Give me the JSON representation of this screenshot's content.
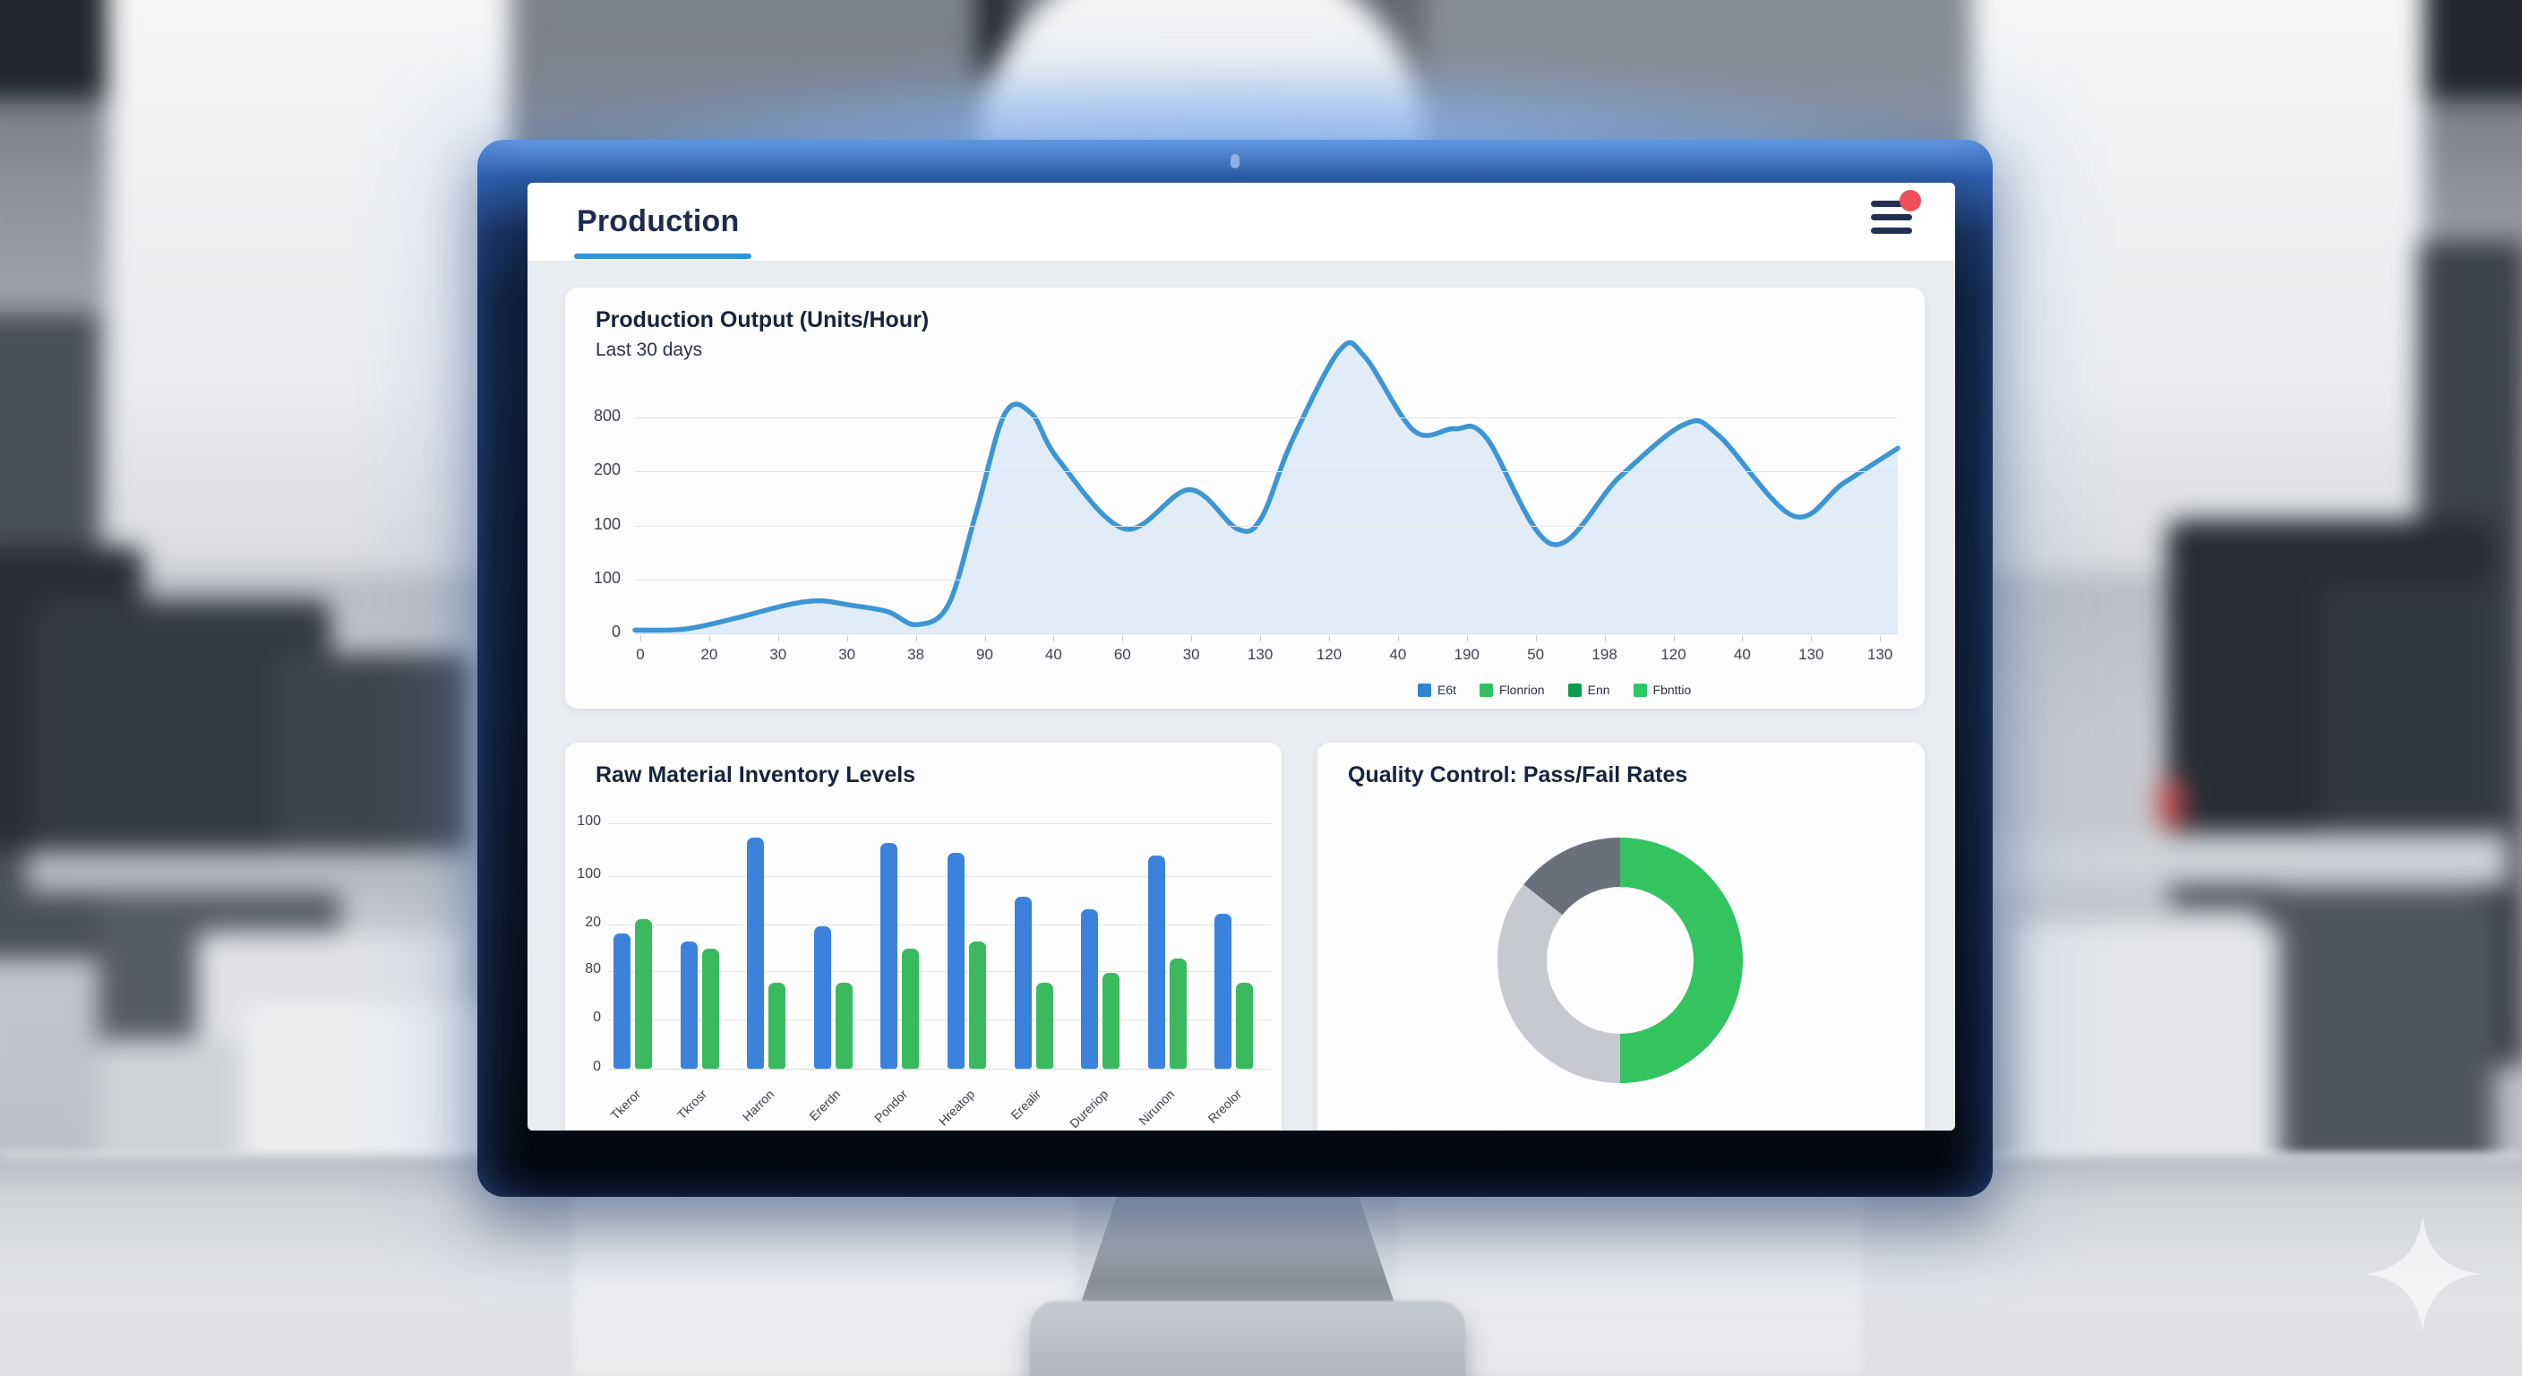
{
  "header": {
    "title": "Production",
    "menu_icon": "hamburger-icon",
    "notification_dot_color": "#ee4f58",
    "tab_accent_color": "#2d96d6"
  },
  "chart_data": [
    {
      "type": "area",
      "title": "Production Output (Units/Hour)",
      "subtitle": "Last 30 days",
      "line_color": "#3d95d3",
      "fill_color": "#d8e9f7",
      "y_tick_labels": [
        "800",
        "200",
        "100",
        "100",
        "0"
      ],
      "x_tick_labels": [
        "0",
        "20",
        "30",
        "30",
        "38",
        "90",
        "40",
        "60",
        "30",
        "130",
        "120",
        "40",
        "190",
        "50",
        "198",
        "120",
        "40",
        "130",
        "130"
      ],
      "points": [
        [
          0,
          1.5
        ],
        [
          4,
          2
        ],
        [
          8,
          7
        ],
        [
          12,
          13
        ],
        [
          14.6,
          15
        ],
        [
          17,
          13
        ],
        [
          20,
          10
        ],
        [
          22.3,
          4
        ],
        [
          24.8,
          13
        ],
        [
          27,
          55
        ],
        [
          29.3,
          101
        ],
        [
          31.4,
          101
        ],
        [
          33.5,
          80
        ],
        [
          38.8,
          48
        ],
        [
          43.9,
          66
        ],
        [
          47.7,
          48
        ],
        [
          49.6,
          53
        ],
        [
          52,
          88
        ],
        [
          55.8,
          130
        ],
        [
          57.8,
          127
        ],
        [
          61.7,
          93
        ],
        [
          64.9,
          94
        ],
        [
          67.4,
          90
        ],
        [
          72.6,
          41
        ],
        [
          78,
          72
        ],
        [
          83.1,
          96
        ],
        [
          85.8,
          91
        ],
        [
          91.7,
          54
        ],
        [
          95.7,
          69
        ],
        [
          100,
          85
        ]
      ],
      "legend": [
        {
          "label": "E6t",
          "color": "#2e86d3"
        },
        {
          "label": "Flonrion",
          "color": "#35bf63"
        },
        {
          "label": "Enn",
          "color": "#0e9b4f"
        },
        {
          "label": "Fbnttio",
          "color": "#2ec765"
        }
      ]
    },
    {
      "type": "bar",
      "title": "Raw Material Inventory Levels",
      "y_tick_labels": [
        "100",
        "100",
        "20",
        "80",
        "0",
        "0"
      ],
      "categories": [
        "Tkeror",
        "Tkrosr",
        "Harron",
        "Ererdn",
        "Pondor",
        "Hreatop",
        "Erealir",
        "Dureriop",
        "Nirunon",
        "Rreolor"
      ],
      "ymax": 100,
      "series": [
        {
          "name": "blue-series",
          "color": "#3b82dc",
          "values": [
            55,
            52,
            94,
            58,
            92,
            88,
            70,
            65,
            87,
            63
          ]
        },
        {
          "name": "green-series",
          "color": "#3bb95e",
          "values": [
            61,
            49,
            35,
            35,
            49,
            52,
            35,
            39,
            45,
            35
          ]
        }
      ]
    },
    {
      "type": "donut",
      "title": "Quality Control: Pass/Fail Rates",
      "slices": [
        {
          "name": "segment-green",
          "color": "#33c45f",
          "pct": 50
        },
        {
          "name": "segment-light-gray",
          "color": "#c6c9cf",
          "pct": 35.6
        },
        {
          "name": "segment-dark-gray",
          "color": "#69707b",
          "pct": 14.4
        }
      ]
    }
  ]
}
